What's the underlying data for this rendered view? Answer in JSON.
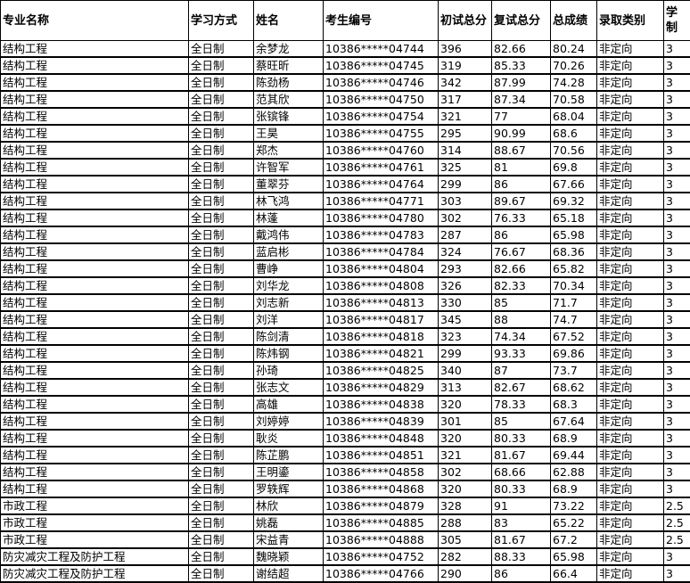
{
  "headers": [
    "专业名称",
    "学习方式",
    "姓名",
    "考生编号",
    "初试总分",
    "复试总分",
    "总成绩",
    "录取类别",
    "学制"
  ],
  "rows": [
    [
      "结构工程",
      "全日制",
      "余梦龙",
      "10386*****04744",
      "396",
      "82.66",
      "80.24",
      "非定向",
      "3"
    ],
    [
      "结构工程",
      "全日制",
      "蔡旺昕",
      "10386*****04745",
      "319",
      "85.33",
      "70.26",
      "非定向",
      "3"
    ],
    [
      "结构工程",
      "全日制",
      "陈劲杨",
      "10386*****04746",
      "342",
      "87.99",
      "74.28",
      "非定向",
      "3"
    ],
    [
      "结构工程",
      "全日制",
      "范其欣",
      "10386*****04750",
      "317",
      "87.34",
      "70.58",
      "非定向",
      "3"
    ],
    [
      "结构工程",
      "全日制",
      "张镔锋",
      "10386*****04754",
      "321",
      "77",
      "68.04",
      "非定向",
      "3"
    ],
    [
      "结构工程",
      "全日制",
      "王昊",
      "10386*****04755",
      "295",
      "90.99",
      "68.6",
      "非定向",
      "3"
    ],
    [
      "结构工程",
      "全日制",
      "郑杰",
      "10386*****04760",
      "314",
      "88.67",
      "70.56",
      "非定向",
      "3"
    ],
    [
      "结构工程",
      "全日制",
      "许智军",
      "10386*****04761",
      "325",
      "81",
      "69.8",
      "非定向",
      "3"
    ],
    [
      "结构工程",
      "全日制",
      "董翠芬",
      "10386*****04764",
      "299",
      "86",
      "67.66",
      "非定向",
      "3"
    ],
    [
      "结构工程",
      "全日制",
      "林飞鸿",
      "10386*****04771",
      "303",
      "89.67",
      "69.32",
      "非定向",
      "3"
    ],
    [
      "结构工程",
      "全日制",
      "林蓬",
      "10386*****04780",
      "302",
      "76.33",
      "65.18",
      "非定向",
      "3"
    ],
    [
      "结构工程",
      "全日制",
      "戴鸿伟",
      "10386*****04783",
      "287",
      "86",
      "65.98",
      "非定向",
      "3"
    ],
    [
      "结构工程",
      "全日制",
      "蓝启彬",
      "10386*****04784",
      "324",
      "76.67",
      "68.36",
      "非定向",
      "3"
    ],
    [
      "结构工程",
      "全日制",
      "曹峥",
      "10386*****04804",
      "293",
      "82.66",
      "65.82",
      "非定向",
      "3"
    ],
    [
      "结构工程",
      "全日制",
      "刘华龙",
      "10386*****04808",
      "326",
      "82.33",
      "70.34",
      "非定向",
      "3"
    ],
    [
      "结构工程",
      "全日制",
      "刘志新",
      "10386*****04813",
      "330",
      "85",
      "71.7",
      "非定向",
      "3"
    ],
    [
      "结构工程",
      "全日制",
      "刘洋",
      "10386*****04817",
      "345",
      "88",
      "74.7",
      "非定向",
      "3"
    ],
    [
      "结构工程",
      "全日制",
      "陈剑清",
      "10386*****04818",
      "323",
      "74.34",
      "67.52",
      "非定向",
      "3"
    ],
    [
      "结构工程",
      "全日制",
      "陈炜钢",
      "10386*****04821",
      "299",
      "93.33",
      "69.86",
      "非定向",
      "3"
    ],
    [
      "结构工程",
      "全日制",
      "孙琦",
      "10386*****04825",
      "340",
      "87",
      "73.7",
      "非定向",
      "3"
    ],
    [
      "结构工程",
      "全日制",
      "张志文",
      "10386*****04829",
      "313",
      "82.67",
      "68.62",
      "非定向",
      "3"
    ],
    [
      "结构工程",
      "全日制",
      "高雄",
      "10386*****04838",
      "320",
      "78.33",
      "68.3",
      "非定向",
      "3"
    ],
    [
      "结构工程",
      "全日制",
      "刘婷婷",
      "10386*****04839",
      "301",
      "85",
      "67.64",
      "非定向",
      "3"
    ],
    [
      "结构工程",
      "全日制",
      "耿炎",
      "10386*****04848",
      "320",
      "80.33",
      "68.9",
      "非定向",
      "3"
    ],
    [
      "结构工程",
      "全日制",
      "陈芷鹏",
      "10386*****04851",
      "321",
      "81.67",
      "69.44",
      "非定向",
      "3"
    ],
    [
      "结构工程",
      "全日制",
      "王明鎏",
      "10386*****04858",
      "302",
      "68.66",
      "62.88",
      "非定向",
      "3"
    ],
    [
      "结构工程",
      "全日制",
      "罗轶辉",
      "10386*****04868",
      "320",
      "80.33",
      "68.9",
      "非定向",
      "3"
    ],
    [
      "市政工程",
      "全日制",
      "林欣",
      "10386*****04879",
      "328",
      "91",
      "73.22",
      "非定向",
      "2.5"
    ],
    [
      "市政工程",
      "全日制",
      "姚磊",
      "10386*****04885",
      "288",
      "83",
      "65.22",
      "非定向",
      "2.5"
    ],
    [
      "市政工程",
      "全日制",
      "宋益青",
      "10386*****04888",
      "305",
      "81.67",
      "67.2",
      "非定向",
      "2.5"
    ],
    [
      "防灾减灾工程及防护工程",
      "全日制",
      "魏晓颖",
      "10386*****04752",
      "282",
      "88.33",
      "65.98",
      "非定向",
      "3"
    ],
    [
      "防灾减灾工程及防护工程",
      "全日制",
      "谢结超",
      "10386*****04766",
      "290",
      "86",
      "66.4",
      "非定向",
      "3"
    ]
  ]
}
